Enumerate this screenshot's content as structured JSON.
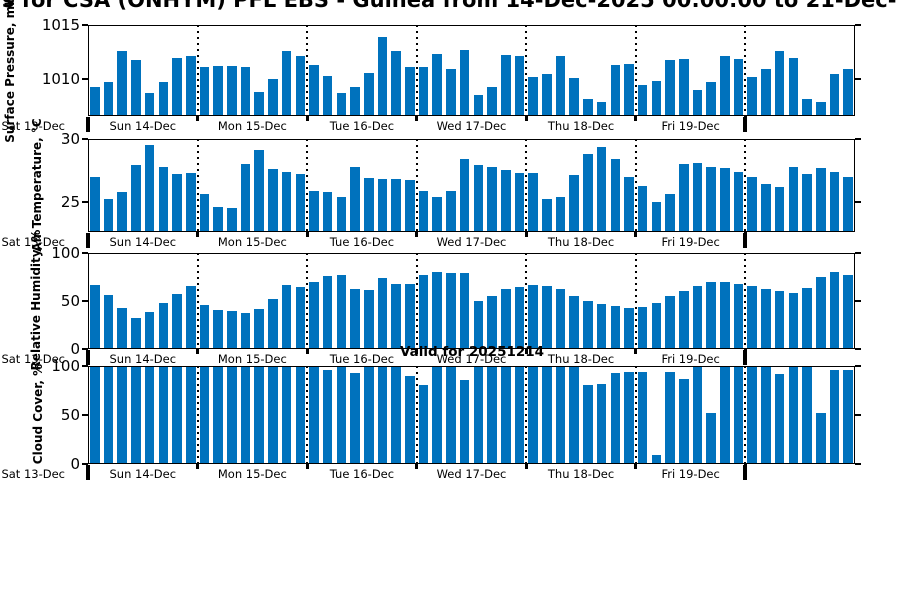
{
  "title": "s for CSA (ONHYM) PFL EBS  - Guinea from 14-Dec-2025 00:00:00 to 21-Dec-",
  "annotation": "Valid for 20251214",
  "colors": {
    "bar": "#0072BD",
    "axis": "#000000",
    "background": "#ffffff"
  },
  "x_day_labels": [
    "Sat 13-Dec",
    "Sun 14-Dec",
    "Mon 15-Dec",
    "Tue 16-Dec",
    "Wed 17-Dec",
    "Thu 18-Dec",
    "Fri 19-Dec"
  ],
  "bars_per_day": 8,
  "chart_data": [
    {
      "type": "bar",
      "title": "",
      "ylabel": "Surface Pressure, mb",
      "xlabel": "",
      "ylim": [
        1006.6,
        1015
      ],
      "yticks": [
        1010,
        1015
      ],
      "grid": "dotted-vertical-day-boundaries",
      "values": [
        1009.3,
        1009.7,
        1012.6,
        1011.8,
        1008.7,
        1009.7,
        1012.0,
        1012.1,
        1011.1,
        1011.2,
        1011.2,
        1011.1,
        1008.8,
        1010.0,
        1012.6,
        1012.1,
        1011.3,
        1010.3,
        1008.7,
        1009.3,
        1010.6,
        1013.9,
        1012.6,
        1011.1,
        1011.1,
        1012.3,
        1010.9,
        1012.7,
        1008.5,
        1009.3,
        1012.2,
        1012.1,
        1010.2,
        1010.5,
        1012.1,
        1010.1,
        1008.2,
        1007.9,
        1011.3,
        1011.4,
        1009.5,
        1009.8,
        1011.8,
        1011.9,
        1009.0,
        1009.7,
        1012.1,
        1011.9,
        1010.2,
        1010.9,
        1012.6,
        1012.0,
        1008.2,
        1007.9,
        1010.5,
        1010.9
      ]
    },
    {
      "type": "bar",
      "title": "",
      "ylabel": "Air Temperature, °C",
      "xlabel": "",
      "ylim": [
        22.6,
        30
      ],
      "yticks": [
        25,
        30
      ],
      "grid": "dotted-vertical-day-boundaries",
      "values": [
        27.0,
        25.2,
        25.8,
        27.9,
        29.5,
        27.8,
        27.2,
        27.3,
        25.6,
        24.6,
        24.5,
        28.0,
        29.1,
        27.6,
        27.4,
        27.2,
        25.9,
        25.8,
        25.4,
        27.8,
        26.9,
        26.8,
        26.8,
        26.7,
        25.9,
        25.4,
        25.9,
        28.4,
        27.9,
        27.8,
        27.5,
        27.3,
        27.3,
        25.2,
        25.4,
        27.1,
        28.8,
        29.4,
        28.4,
        27.0,
        26.3,
        25.0,
        25.6,
        28.0,
        28.1,
        27.8,
        27.7,
        27.4,
        27.0,
        26.4,
        26.2,
        27.8,
        27.2,
        27.7,
        27.4,
        27.0
      ]
    },
    {
      "type": "bar",
      "title": "",
      "ylabel": "Relative Humidity, %",
      "xlabel": "",
      "ylim": [
        0,
        100
      ],
      "yticks": [
        0,
        50,
        100
      ],
      "grid": "dotted-vertical-day-boundaries",
      "values": [
        67,
        56,
        43,
        32,
        39,
        48,
        57,
        66,
        46,
        41,
        40,
        37,
        42,
        52,
        67,
        65,
        70,
        76,
        77,
        62,
        61,
        74,
        68,
        68,
        77,
        80,
        79,
        79,
        50,
        55,
        63,
        65,
        67,
        66,
        63,
        55,
        50,
        47,
        45,
        43,
        44,
        48,
        55,
        60,
        66,
        70,
        70,
        68,
        66,
        62,
        60,
        58,
        64,
        75,
        80,
        77
      ]
    },
    {
      "type": "bar",
      "title": "",
      "ylabel": "Cloud Cover, %",
      "xlabel": "",
      "ylim": [
        0,
        100
      ],
      "yticks": [
        0,
        50,
        100
      ],
      "grid": "dotted-vertical-day-boundaries",
      "values": [
        100,
        100,
        100,
        100,
        100,
        100,
        100,
        100,
        100,
        100,
        100,
        100,
        100,
        100,
        100,
        100,
        100,
        96,
        100,
        93,
        100,
        100,
        100,
        90,
        81,
        100,
        100,
        86,
        100,
        100,
        100,
        100,
        100,
        100,
        100,
        100,
        81,
        82,
        93,
        94,
        94,
        9,
        94,
        87,
        100,
        52,
        100,
        100,
        100,
        100,
        92,
        100,
        100,
        52,
        96,
        96
      ]
    }
  ]
}
